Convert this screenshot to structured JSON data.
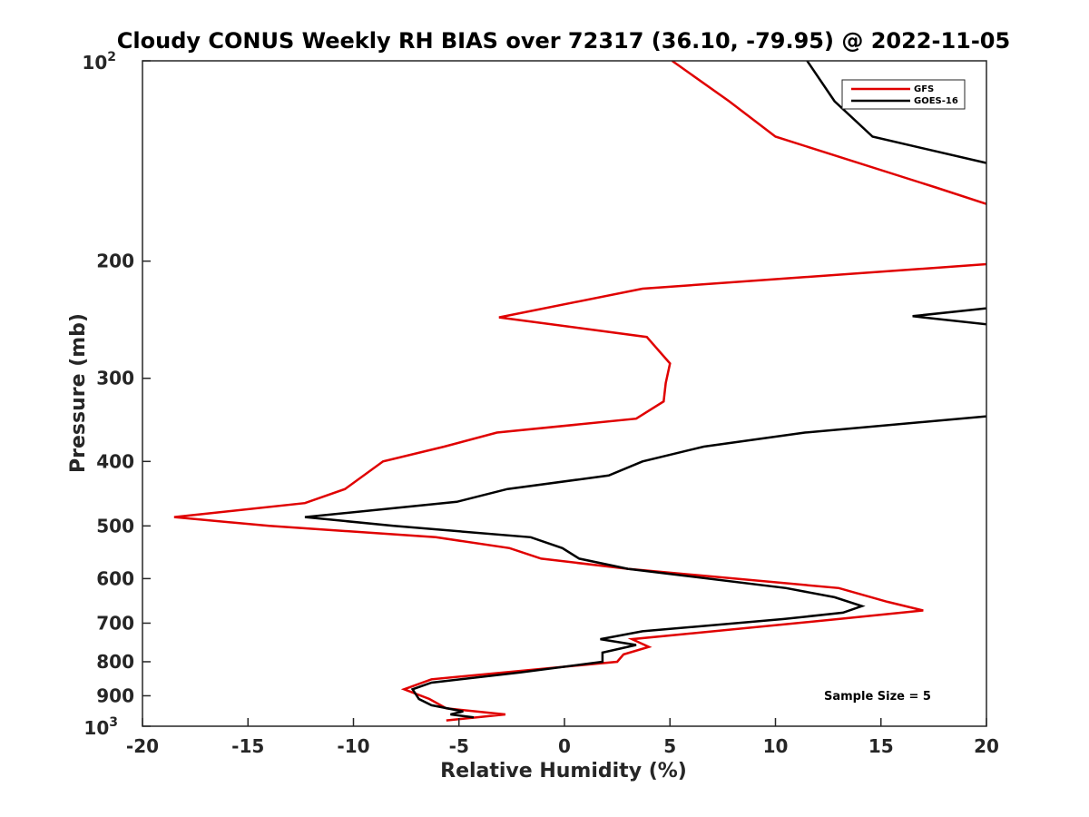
{
  "chart_data": {
    "type": "line",
    "title": "Cloudy CONUS Weekly RH BIAS over 72317 (36.10, -79.95) @ 2022-11-05",
    "xlabel": "Relative Humidity (%)",
    "ylabel": "Pressure (mb)",
    "xlim": [
      -20,
      20
    ],
    "ylim": [
      100,
      1000
    ],
    "y_scale": "log",
    "y_reversed": true,
    "x_ticks": [
      -20,
      -15,
      -10,
      -5,
      0,
      5,
      10,
      15,
      20
    ],
    "x_tick_labels": [
      "-20",
      "-15",
      "-10",
      "-5",
      "0",
      "5",
      "10",
      "15",
      "20"
    ],
    "y_ticks": [
      200,
      300,
      400,
      500,
      600,
      700,
      800,
      900
    ],
    "y_tick_labels": [
      "200",
      "300",
      "400",
      "500",
      "600",
      "700",
      "800",
      "900"
    ],
    "y_top_label": {
      "base": "10",
      "exp": "2"
    },
    "y_bottom_label": {
      "base": "10",
      "exp": "3"
    },
    "grid": false,
    "legend_position": "top-right",
    "annotation": "Sample Size = 5",
    "series": [
      {
        "name": "GFS",
        "color": "#e00000",
        "x": [
          5.1,
          7.8,
          10.0,
          17.6,
          21.0,
          26.0,
          22.0,
          3.7,
          -3.1,
          3.9,
          5.0,
          4.8,
          4.7,
          3.4,
          -3.2,
          -5.7,
          -8.6,
          -10.4,
          -12.3,
          -18.5,
          -14.0,
          -6.1,
          -2.6,
          -1.1,
          3.0,
          13.0,
          15.3,
          17.0,
          13.0,
          3.2,
          4.0,
          2.8,
          2.5,
          -6.3,
          -7.6,
          -6.4,
          -5.6,
          -2.8,
          -5.6
        ],
        "y": [
          100,
          115,
          130,
          155,
          168,
          170,
          200,
          220,
          243,
          260,
          285,
          305,
          325,
          345,
          362,
          380,
          400,
          440,
          462,
          485,
          500,
          520,
          540,
          560,
          580,
          620,
          650,
          670,
          690,
          740,
          760,
          780,
          800,
          850,
          880,
          910,
          940,
          960,
          980
        ]
      },
      {
        "name": "GOES-16",
        "color": "#000000",
        "x": [
          11.5,
          12.8,
          14.6,
          25.0,
          23.0,
          16.5,
          23.0,
          21.0,
          11.4,
          6.6,
          3.7,
          2.1,
          -2.7,
          -5.1,
          -12.3,
          -8.1,
          -1.6,
          -0.1,
          0.7,
          3.0,
          10.5,
          12.8,
          14.1,
          13.2,
          10.4,
          3.7,
          1.7,
          3.4,
          1.8,
          1.8,
          -2.1,
          -6.3,
          -7.2,
          -6.9,
          -6.3,
          -4.8,
          -5.4,
          -4.3
        ],
        "y": [
          100,
          115,
          130,
          155,
          230,
          242,
          255,
          340,
          362,
          380,
          400,
          420,
          440,
          460,
          485,
          500,
          520,
          540,
          560,
          580,
          620,
          640,
          660,
          675,
          690,
          720,
          740,
          755,
          775,
          800,
          830,
          860,
          880,
          910,
          930,
          950,
          960,
          970
        ]
      }
    ]
  }
}
